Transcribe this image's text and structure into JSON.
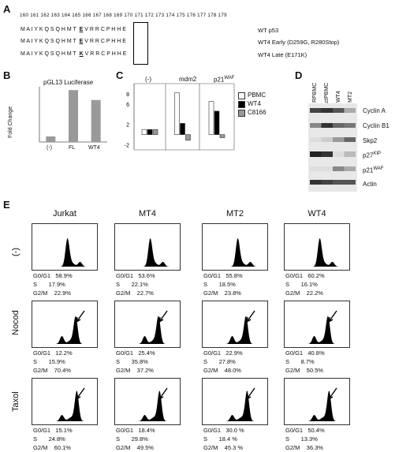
{
  "panelA": {
    "label": "A",
    "numbers": "160 161 162 163 164 165 166 167 168 169 170 171 172 173 174 175 176 177 178 179",
    "rows": [
      {
        "seq": "M A I Y K Q S Q H M T",
        "boxed": "E",
        "rest": "V R R C P H H E",
        "label": "WT p53"
      },
      {
        "seq": "M A I Y K Q S Q H M T",
        "boxed": "E",
        "rest": "V R R C P H H E",
        "label": "WT4 Early (D259G, R280Stop)"
      },
      {
        "seq": "M A I Y K Q S Q H M T",
        "boxed": "K",
        "rest": "V R R C P H H E",
        "label": "WT4 Late (E171K)"
      }
    ]
  },
  "panelB": {
    "label": "B",
    "title": "pGL13 Luciferase",
    "ylabel": "Fold Change",
    "categories": [
      "(-)",
      "FL",
      "WT4"
    ]
  },
  "panelC": {
    "label": "C",
    "groups": [
      "(-)",
      "mdm2",
      "p21WAF"
    ],
    "legend": [
      "PBMC",
      "WT4",
      "C8166"
    ],
    "yticks": [
      "8",
      "6",
      "2",
      "-2"
    ]
  },
  "panelD": {
    "label": "D",
    "lanes": [
      "RPBMC",
      "ActPBMC",
      "WT4",
      "MT2"
    ],
    "proteins": [
      "Cyclin A",
      "Cyclin B1",
      "Skp2",
      "p27KIP",
      "p21WAF",
      "Actin"
    ]
  },
  "panelE": {
    "label": "E",
    "columns": [
      "Jurkat",
      "MT4",
      "MT2",
      "WT4"
    ],
    "rows": [
      "(-)",
      "Nocod",
      "Taxol"
    ],
    "stats": [
      [
        [
          "58.9%",
          "17.9%",
          "22.9%"
        ],
        [
          "53.6%",
          "22.1%",
          "22.7%"
        ],
        [
          "55.8%",
          "18.5%",
          "23.8%"
        ],
        [
          "60.2%",
          "16.1%",
          "22.2%"
        ]
      ],
      [
        [
          "12.2%",
          "15.9%",
          "70.4%"
        ],
        [
          "25.4%",
          "35.8%",
          "37.2%"
        ],
        [
          "22.9%",
          "27.8%",
          "48.0%"
        ],
        [
          "40.8%",
          "8.7%",
          "50.5%"
        ]
      ],
      [
        [
          "15.1%",
          "24.8%",
          "60.1%"
        ],
        [
          "18.4%",
          "29.8%",
          "49.5%"
        ],
        [
          "30.0 %",
          "18.4 %",
          "45.3 %"
        ],
        [
          "50.4%",
          "13.3%",
          "36.3%"
        ]
      ]
    ],
    "phase_labels": [
      "G0/G1",
      "S",
      "G2/M"
    ]
  },
  "chart_data": [
    {
      "type": "bar",
      "title": "pGL13 Luciferase",
      "ylabel": "Fold Change",
      "categories": [
        "(-)",
        "FL",
        "WT4"
      ],
      "values": [
        1,
        9.4,
        7.6
      ],
      "ylim": [
        0,
        10
      ]
    },
    {
      "type": "bar",
      "categories": [
        "(-)",
        "mdm2",
        "p21WAF"
      ],
      "series": [
        {
          "name": "PBMC",
          "values": [
            1,
            8.2,
            6.5
          ]
        },
        {
          "name": "WT4",
          "values": [
            1,
            2.2,
            4.6
          ]
        },
        {
          "name": "C8166",
          "values": [
            1,
            -1.1,
            -0.6
          ]
        }
      ],
      "yticks": [
        -2,
        2,
        6,
        8
      ],
      "ylim": [
        -3,
        10
      ]
    }
  ]
}
